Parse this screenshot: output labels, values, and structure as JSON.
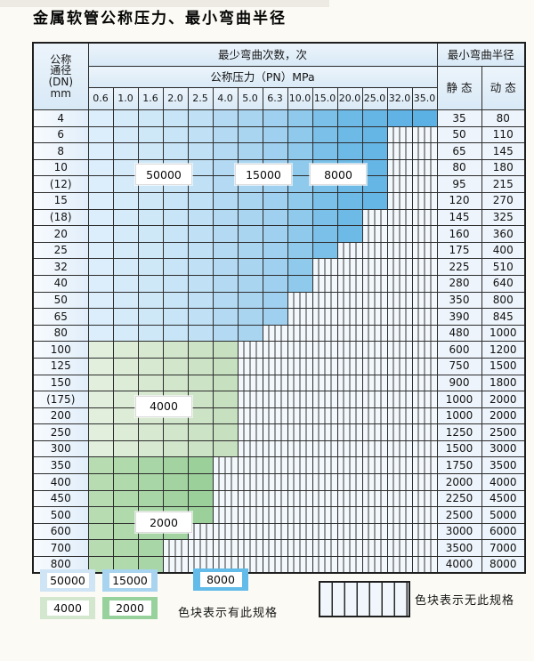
{
  "title": "金属软管公称压力、最小弯曲半径",
  "table": {
    "dn_header_lines": [
      "公称",
      "通径",
      "(DN)",
      "mm"
    ],
    "bend_times_header": "最少弯曲次数，次",
    "pressure_header": "公称压力（PN）MPa",
    "radius_header": "最小弯曲半径",
    "static_label": "静 态",
    "dynamic_label": "动 态",
    "pressures": [
      "0.6",
      "1.0",
      "1.6",
      "2.0",
      "2.5",
      "4.0",
      "5.0",
      "6.3",
      "10.0",
      "15.0",
      "20.0",
      "25.0",
      "32.0",
      "35.0"
    ],
    "rows": [
      {
        "dn": "4",
        "filled": 14,
        "zone": "blue",
        "static": "35",
        "dynamic": "80"
      },
      {
        "dn": "6",
        "filled": 12,
        "zone": "blue",
        "static": "50",
        "dynamic": "110"
      },
      {
        "dn": "8",
        "filled": 12,
        "zone": "blue",
        "static": "65",
        "dynamic": "145"
      },
      {
        "dn": "10",
        "filled": 12,
        "zone": "blue",
        "static": "80",
        "dynamic": "180"
      },
      {
        "dn": "(12)",
        "filled": 12,
        "zone": "blue",
        "static": "95",
        "dynamic": "215"
      },
      {
        "dn": "15",
        "filled": 12,
        "zone": "blue",
        "static": "120",
        "dynamic": "270"
      },
      {
        "dn": "(18)",
        "filled": 11,
        "zone": "blue",
        "static": "145",
        "dynamic": "325"
      },
      {
        "dn": "20",
        "filled": 11,
        "zone": "blue",
        "static": "160",
        "dynamic": "360"
      },
      {
        "dn": "25",
        "filled": 10,
        "zone": "blue",
        "static": "175",
        "dynamic": "400"
      },
      {
        "dn": "32",
        "filled": 9,
        "zone": "blue",
        "static": "225",
        "dynamic": "510"
      },
      {
        "dn": "40",
        "filled": 9,
        "zone": "blue",
        "static": "280",
        "dynamic": "640"
      },
      {
        "dn": "50",
        "filled": 8,
        "zone": "blue",
        "static": "350",
        "dynamic": "800"
      },
      {
        "dn": "65",
        "filled": 8,
        "zone": "blue",
        "static": "390",
        "dynamic": "845"
      },
      {
        "dn": "80",
        "filled": 7,
        "zone": "blue",
        "static": "480",
        "dynamic": "1000"
      },
      {
        "dn": "100",
        "filled": 6,
        "zone": "green_light",
        "static": "600",
        "dynamic": "1200"
      },
      {
        "dn": "125",
        "filled": 6,
        "zone": "green_light",
        "static": "750",
        "dynamic": "1500"
      },
      {
        "dn": "150",
        "filled": 6,
        "zone": "green_light",
        "static": "900",
        "dynamic": "1800"
      },
      {
        "dn": "(175)",
        "filled": 6,
        "zone": "green_light",
        "static": "1000",
        "dynamic": "2000"
      },
      {
        "dn": "200",
        "filled": 6,
        "zone": "green_light",
        "static": "1000",
        "dynamic": "2000"
      },
      {
        "dn": "250",
        "filled": 6,
        "zone": "green_light",
        "static": "1250",
        "dynamic": "2500"
      },
      {
        "dn": "300",
        "filled": 6,
        "zone": "green_light",
        "static": "1500",
        "dynamic": "3000"
      },
      {
        "dn": "350",
        "filled": 5,
        "zone": "green_dark",
        "static": "1750",
        "dynamic": "3500"
      },
      {
        "dn": "400",
        "filled": 5,
        "zone": "green_dark",
        "static": "2000",
        "dynamic": "4000"
      },
      {
        "dn": "450",
        "filled": 5,
        "zone": "green_dark",
        "static": "2250",
        "dynamic": "4500"
      },
      {
        "dn": "500",
        "filled": 5,
        "zone": "green_dark",
        "static": "2500",
        "dynamic": "5000"
      },
      {
        "dn": "600",
        "filled": 4,
        "zone": "green_dark",
        "static": "3000",
        "dynamic": "6000"
      },
      {
        "dn": "700",
        "filled": 3,
        "zone": "green_dark",
        "static": "3500",
        "dynamic": "7000"
      },
      {
        "dn": "800",
        "filled": 3,
        "zone": "green_dark",
        "static": "4000",
        "dynamic": "8000"
      }
    ],
    "overlays": [
      {
        "text": "50000",
        "col_start": 2,
        "col_span": 2,
        "row_boundary": 4
      },
      {
        "text": "15000",
        "col_start": 6,
        "col_span": 2,
        "row_boundary": 4
      },
      {
        "text": "8000",
        "col_start": 9,
        "col_span": 2,
        "row_boundary": 4
      },
      {
        "text": "4000",
        "col_start": 2,
        "col_span": 2,
        "row_boundary": 18
      },
      {
        "text": "2000",
        "col_start": 2,
        "col_span": 2,
        "row_boundary": 25
      }
    ]
  },
  "colors": {
    "blue_ramp": [
      "#dceefb",
      "#d6ebfa",
      "#cfe8f8",
      "#c8e4f7",
      "#c0e0f5",
      "#b4daf3",
      "#aad5f1",
      "#9fd0ef",
      "#8fc9ec",
      "#7ac0e9",
      "#6ebae7",
      "#66b6e5",
      "#60b3e4",
      "#5bb1e3"
    ],
    "green_light_ramp": [
      "#e1efdc",
      "#dcecd6",
      "#d7e9d0",
      "#d2e6cb",
      "#cce3c5",
      "#c7e0c0"
    ],
    "green_dark_ramp": [
      "#b7dcb2",
      "#b0d9ac",
      "#a9d6a6",
      "#a2d3a0",
      "#9bd09b"
    ]
  },
  "legend": {
    "swatches": [
      {
        "text": "50000",
        "color": "#cfe4f5"
      },
      {
        "text": "15000",
        "color": "#a8d4f0"
      },
      {
        "text": "8000",
        "color": "#62bbe8"
      },
      {
        "text": "4000",
        "color": "#d3e7cf"
      },
      {
        "text": "2000",
        "color": "#97d19c"
      }
    ],
    "exists_label": "色块表示有此规格",
    "none_label": "色块表示无此规格"
  }
}
